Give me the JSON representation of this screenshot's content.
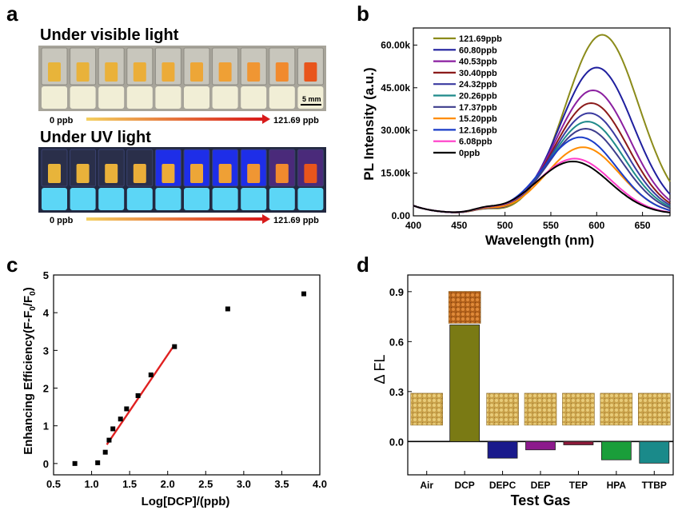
{
  "panel_labels": {
    "a": "a",
    "b": "b",
    "c": "c",
    "d": "d"
  },
  "panel_a": {
    "visible_title": "Under visible light",
    "uv_title": "Under UV light",
    "scale_bar": "5 mm",
    "gradient_start": "0 ppb",
    "gradient_end": "121.69 ppb",
    "vial_count": 10,
    "visible_tint_colors": [
      "#e8b43a",
      "#e9b23a",
      "#eab13a",
      "#ebae39",
      "#ecab38",
      "#eda637",
      "#efa035",
      "#f09633",
      "#f18a2e",
      "#e8551c"
    ],
    "uv_bg_colors": [
      "#2a2f4a",
      "#2a2f4a",
      "#2a2f4a",
      "#2a2f4a",
      "#1e2ee8",
      "#1e2ee8",
      "#1e2ee8",
      "#1e2ee8",
      "#4a2a7a",
      "#4a2a7a"
    ]
  },
  "chart_data": [
    {
      "type": "line",
      "panel": "b",
      "xlabel": "Wavelength (nm)",
      "ylabel": "PL Intensity (a.u.)",
      "xlim": [
        400,
        680
      ],
      "ylim": [
        0,
        66000
      ],
      "xticks": [
        400,
        450,
        500,
        550,
        600,
        650
      ],
      "yticks": [
        0,
        15000,
        30000,
        45000,
        60000
      ],
      "ytick_labels": [
        "0.00",
        "15.00k",
        "30.00k",
        "45.00k",
        "60.00k"
      ],
      "legend_position": "top-left",
      "series": [
        {
          "name": "121.69ppb",
          "color": "#8b8b1a",
          "peak_x": 606,
          "peak_y": 63000
        },
        {
          "name": "60.80ppb",
          "color": "#1f1f9e",
          "peak_x": 600,
          "peak_y": 51500
        },
        {
          "name": "40.53ppb",
          "color": "#8b1fa0",
          "peak_x": 596,
          "peak_y": 43500
        },
        {
          "name": "30.40ppb",
          "color": "#8b1a1a",
          "peak_x": 594,
          "peak_y": 39000
        },
        {
          "name": "24.32ppb",
          "color": "#3a3aa0",
          "peak_x": 592,
          "peak_y": 35500
        },
        {
          "name": "20.26ppb",
          "color": "#1f8a8a",
          "peak_x": 590,
          "peak_y": 32500
        },
        {
          "name": "17.37ppb",
          "color": "#3d3d8c",
          "peak_x": 588,
          "peak_y": 30000
        },
        {
          "name": "15.20ppb",
          "color": "#ff8c00",
          "peak_x": 585,
          "peak_y": 23500
        },
        {
          "name": "12.16ppb",
          "color": "#1a3cc8",
          "peak_x": 582,
          "peak_y": 27000
        },
        {
          "name": "6.08ppb",
          "color": "#ff3cc8",
          "peak_x": 576,
          "peak_y": 19500
        },
        {
          "name": "0ppb",
          "color": "#000000",
          "peak_x": 574,
          "peak_y": 18500
        }
      ]
    },
    {
      "type": "scatter",
      "panel": "c",
      "xlabel": "Log[DCP]/(ppb)",
      "ylabel": "Enhancing Efficiency(F-F0/F0)",
      "xlim": [
        0.5,
        4.0
      ],
      "ylim": [
        -0.3,
        5
      ],
      "xticks": [
        0.5,
        1.0,
        1.5,
        2.0,
        2.5,
        3.0,
        3.5,
        4.0
      ],
      "yticks": [
        0,
        1,
        2,
        3,
        4,
        5
      ],
      "points": [
        {
          "x": 0.78,
          "y": 0.0
        },
        {
          "x": 1.08,
          "y": 0.02
        },
        {
          "x": 1.18,
          "y": 0.3
        },
        {
          "x": 1.23,
          "y": 0.62
        },
        {
          "x": 1.28,
          "y": 0.92
        },
        {
          "x": 1.38,
          "y": 1.18
        },
        {
          "x": 1.46,
          "y": 1.45
        },
        {
          "x": 1.61,
          "y": 1.8
        },
        {
          "x": 1.78,
          "y": 2.35
        },
        {
          "x": 2.09,
          "y": 3.1
        },
        {
          "x": 2.79,
          "y": 4.1
        },
        {
          "x": 3.79,
          "y": 4.5
        }
      ],
      "fit_line": {
        "x": [
          1.2,
          2.09
        ],
        "y": [
          0.5,
          3.15
        ],
        "color": "#e02020"
      }
    },
    {
      "type": "bar",
      "panel": "d",
      "xlabel": "Test Gas",
      "ylabel": "Δ FL",
      "categories": [
        "Air",
        "DCP",
        "DEPC",
        "DEP",
        "TEP",
        "HPA",
        "TTBP"
      ],
      "values": [
        0.0,
        0.7,
        -0.1,
        -0.05,
        -0.02,
        -0.11,
        -0.13
      ],
      "colors": [
        "#ffffff",
        "#7a7a14",
        "#1a1a8c",
        "#8c1a8c",
        "#8c1a3a",
        "#1a9e3a",
        "#1a8a8a"
      ],
      "ylim": [
        -0.2,
        1.0
      ],
      "yticks": [
        0.0,
        0.3,
        0.6,
        0.9
      ],
      "ytick_labels": [
        "0.0",
        "0.3",
        "0.6",
        "0.9"
      ]
    }
  ]
}
